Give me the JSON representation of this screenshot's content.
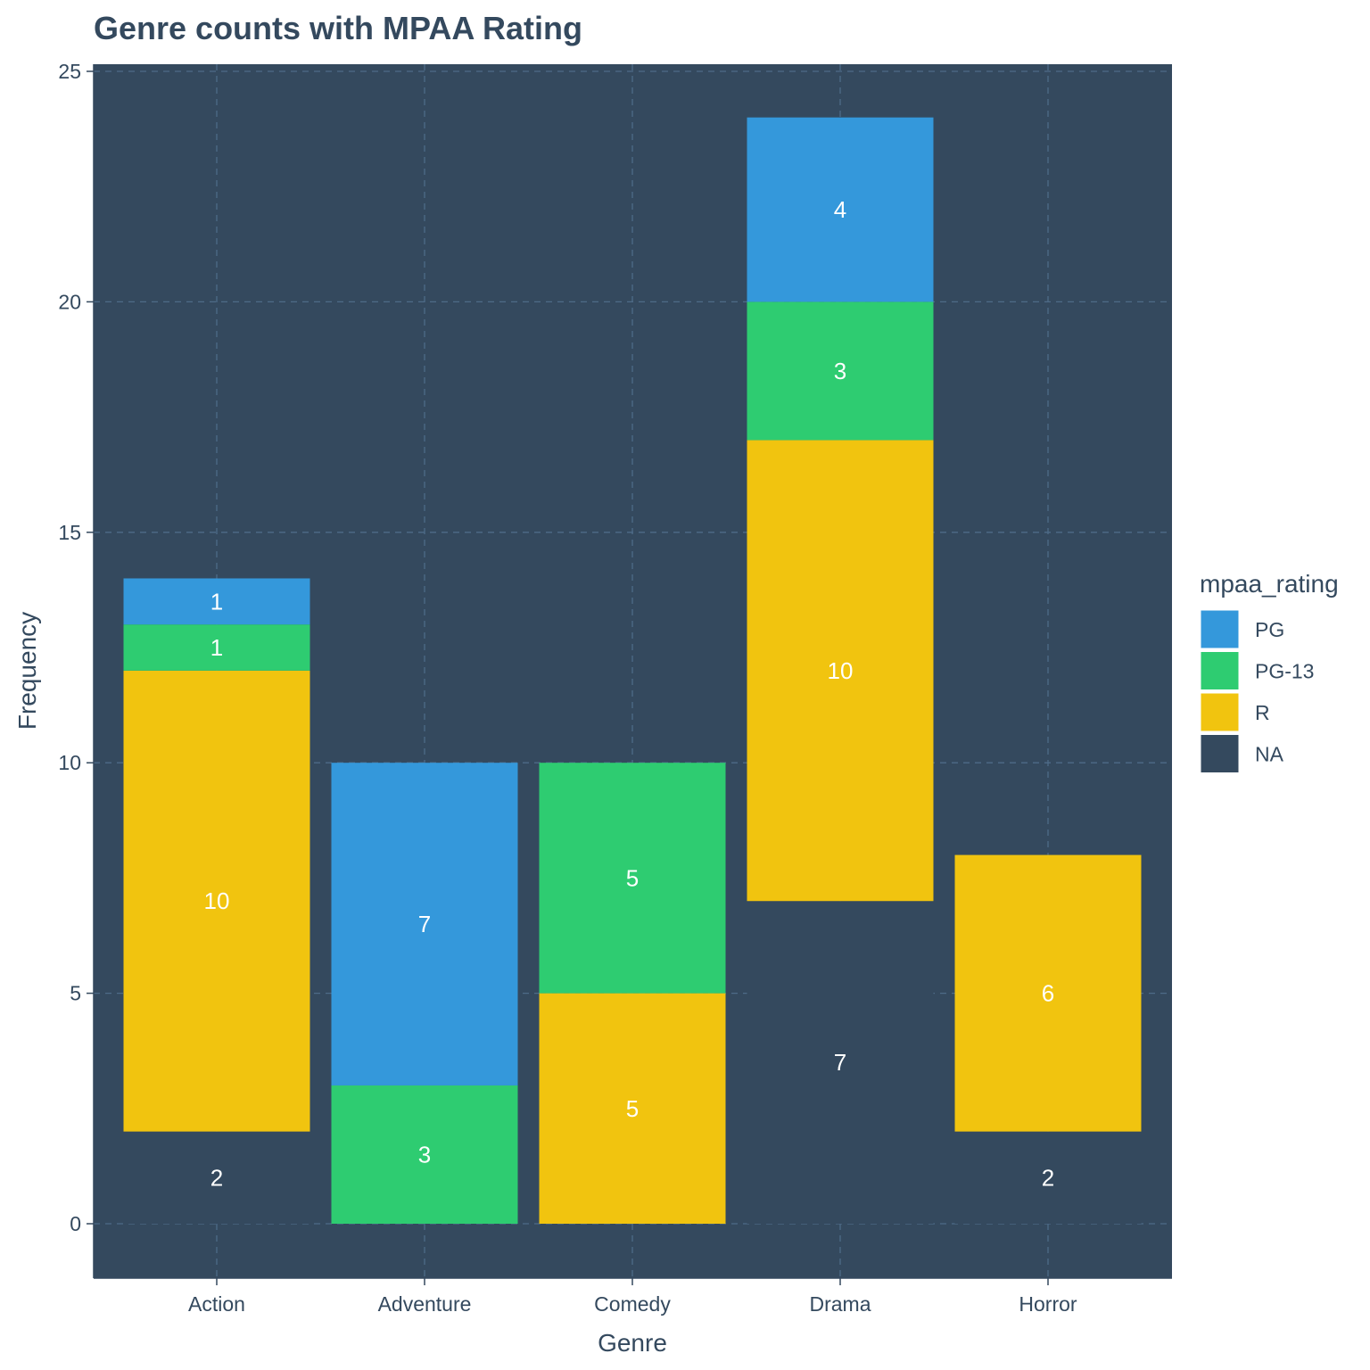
{
  "chart_data": {
    "type": "bar",
    "stacked": true,
    "title": "Genre counts with MPAA Rating",
    "xlabel": "Genre",
    "ylabel": "Frequency",
    "ylim": [
      0,
      25
    ],
    "yticks": [
      0,
      5,
      10,
      15,
      20,
      25
    ],
    "grid": true,
    "legend": {
      "title": "mpaa_rating",
      "position": "right"
    },
    "categories": [
      "Action",
      "Adventure",
      "Comedy",
      "Drama",
      "Horror"
    ],
    "series": [
      {
        "name": "PG",
        "color": "#3498db",
        "values": [
          1,
          7,
          0,
          4,
          0
        ]
      },
      {
        "name": "PG-13",
        "color": "#2ecc71",
        "values": [
          1,
          3,
          5,
          3,
          0
        ]
      },
      {
        "name": "R",
        "color": "#f1c40f",
        "values": [
          10,
          0,
          5,
          10,
          6
        ]
      },
      {
        "name": "NA",
        "color": "#34495e",
        "values": [
          2,
          0,
          0,
          7,
          2
        ]
      }
    ],
    "colors": {
      "panel_background": "#34495e",
      "grid": "#4e6b88",
      "text": "#34495e",
      "label": "#ffffff"
    }
  }
}
